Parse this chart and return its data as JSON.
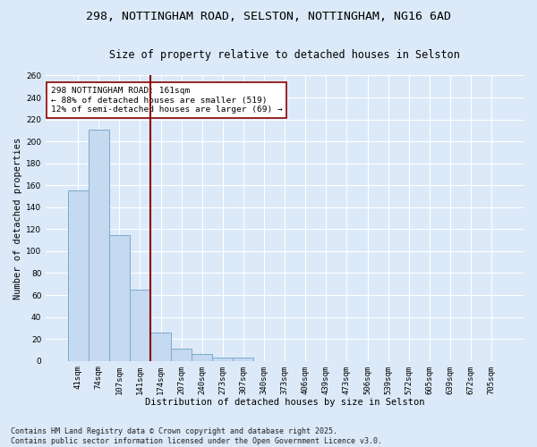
{
  "title1": "298, NOTTINGHAM ROAD, SELSTON, NOTTINGHAM, NG16 6AD",
  "title2": "Size of property relative to detached houses in Selston",
  "xlabel": "Distribution of detached houses by size in Selston",
  "ylabel": "Number of detached properties",
  "categories": [
    "41sqm",
    "74sqm",
    "107sqm",
    "141sqm",
    "174sqm",
    "207sqm",
    "240sqm",
    "273sqm",
    "307sqm",
    "340sqm",
    "373sqm",
    "406sqm",
    "439sqm",
    "473sqm",
    "506sqm",
    "539sqm",
    "572sqm",
    "605sqm",
    "639sqm",
    "672sqm",
    "705sqm"
  ],
  "values": [
    155,
    211,
    115,
    65,
    26,
    11,
    6,
    3,
    3,
    0,
    0,
    0,
    0,
    0,
    0,
    0,
    0,
    0,
    0,
    0,
    0
  ],
  "bar_color": "#c5d9f0",
  "bar_edge_color": "#7aabcc",
  "vline_color": "#8b0000",
  "annotation_text": "298 NOTTINGHAM ROAD: 161sqm\n← 88% of detached houses are smaller (519)\n12% of semi-detached houses are larger (69) →",
  "annotation_box_color": "#ffffff",
  "annotation_box_edge": "#8b0000",
  "ylim": [
    0,
    260
  ],
  "yticks": [
    0,
    20,
    40,
    60,
    80,
    100,
    120,
    140,
    160,
    180,
    200,
    220,
    240,
    260
  ],
  "bg_color": "#dce9f8",
  "grid_color": "#ffffff",
  "footer": "Contains HM Land Registry data © Crown copyright and database right 2025.\nContains public sector information licensed under the Open Government Licence v3.0.",
  "title_fontsize": 9.5,
  "subtitle_fontsize": 8.5,
  "axis_label_fontsize": 7.5,
  "tick_fontsize": 6.5,
  "footer_fontsize": 6.0,
  "annot_fontsize": 6.8
}
